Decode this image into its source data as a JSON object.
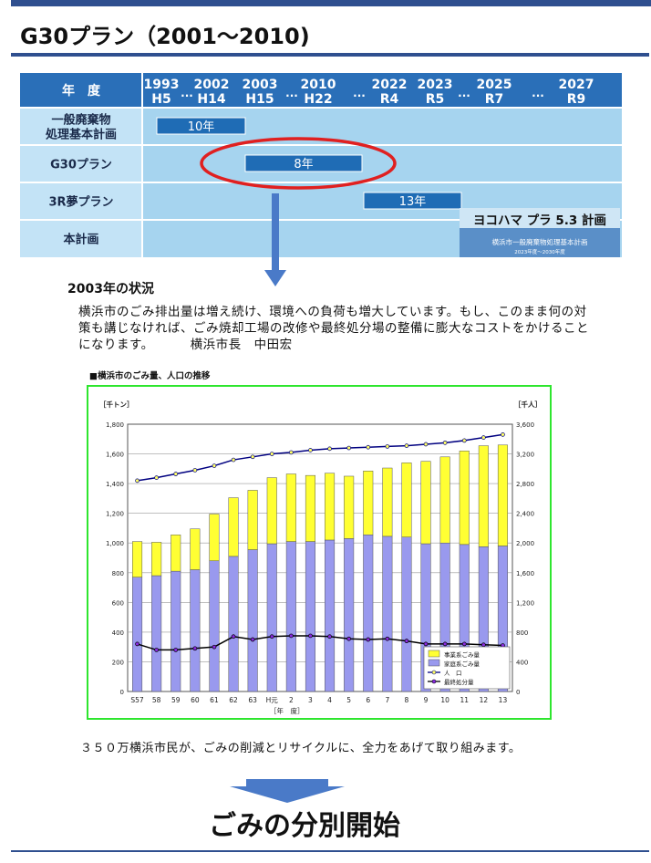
{
  "slide": {
    "title": "G30プラン（2001〜2010)",
    "subheading": "2003年の状況",
    "quote": "横浜市のごみ排出量は増え続け、環境への負荷も増大しています。もし、このまま何の対策も講じなければ、ごみ焼却工場の改修や最終処分場の整備に膨大なコストをかけることになります。",
    "quote_author": "横浜市長　中田宏",
    "chart_caption": "■横浜市のごみ量、人口の推移",
    "pledge": "３５０万横浜市民が、ごみの削減とリサイクルに、全力をあげて取り組みます。",
    "conclusion": "ごみの分別開始"
  },
  "timeline": {
    "header_label": "年　度",
    "columns": [
      {
        "year": "1993",
        "era": "H5"
      },
      {
        "year": "...",
        "era": ""
      },
      {
        "year": "2002",
        "era": "H14"
      },
      {
        "year": "2003",
        "era": "H15"
      },
      {
        "year": "...",
        "era": ""
      },
      {
        "year": "2010",
        "era": "H22"
      },
      {
        "year": "...",
        "era": ""
      },
      {
        "year": "2022",
        "era": "R4"
      },
      {
        "year": "2023",
        "era": "R5"
      },
      {
        "year": "...",
        "era": ""
      },
      {
        "year": "2025",
        "era": "R7"
      },
      {
        "year": "...",
        "era": ""
      },
      {
        "year": "2027",
        "era": "R9"
      }
    ],
    "rows": [
      {
        "label": "一般廃棄物\n処理基本計画",
        "bar_label": "10年",
        "start": "1993",
        "end": "2002"
      },
      {
        "label": "G30プラン",
        "bar_label": "8年",
        "start": "2003",
        "end": "2010",
        "highlighted": true
      },
      {
        "label": "3R夢プラン",
        "bar_label": "13年",
        "start": "2010",
        "end": "2022"
      },
      {
        "label": "本計画",
        "bar_label": "",
        "start": "2023",
        "end": "2030"
      }
    ],
    "plan_card": {
      "title": "ヨコハマ プラ 5.3 計画",
      "subtitle": "横浜市一般廃棄物処理基本計画",
      "period": "2023年度〜2030年度"
    },
    "colors": {
      "header": "#2a6fb8",
      "body": "#a6d4ef",
      "bar": "#1f6cb5",
      "circle": "#e02020"
    }
  },
  "chart_data": {
    "type": "bar",
    "x": [
      "S57",
      "58",
      "59",
      "60",
      "61",
      "62",
      "63",
      "H元",
      "2",
      "3",
      "4",
      "5",
      "6",
      "7",
      "8",
      "9",
      "10",
      "11",
      "12",
      "13"
    ],
    "xlabel": "［年　度］",
    "ylabel_left": "［千トン］",
    "ylabel_right": "［千人］",
    "ylim_left": [
      0,
      1800
    ],
    "ylim_right": [
      0,
      3600
    ],
    "yticks_left": [
      "0",
      "200",
      "400",
      "600",
      "800",
      "1,000",
      "1,200",
      "1,400",
      "1,600",
      "1,800"
    ],
    "yticks_right": [
      "0",
      "400",
      "800",
      "1,200",
      "1,600",
      "2,000",
      "2,400",
      "2,800",
      "3,200",
      "3,600"
    ],
    "grid": true,
    "legend_position": "bottom-right",
    "series": [
      {
        "name": "家庭系ごみ量",
        "kind": "stacked-bar",
        "axis": "left",
        "color": "#9999ee",
        "values": [
          770,
          780,
          810,
          820,
          880,
          910,
          955,
          995,
          1010,
          1010,
          1020,
          1030,
          1055,
          1045,
          1040,
          995,
          1000,
          990,
          975,
          980
        ]
      },
      {
        "name": "事業系ごみ量",
        "kind": "stacked-bar",
        "axis": "left",
        "color": "#ffff33",
        "values": [
          240,
          225,
          245,
          275,
          315,
          395,
          400,
          445,
          455,
          445,
          450,
          420,
          430,
          460,
          500,
          555,
          580,
          630,
          680,
          680
        ]
      },
      {
        "name": "人　口",
        "kind": "line",
        "axis": "right",
        "color": "#000080",
        "marker_color": "#ffff66",
        "values": [
          2840,
          2880,
          2930,
          2980,
          3040,
          3120,
          3160,
          3200,
          3220,
          3250,
          3270,
          3280,
          3290,
          3300,
          3310,
          3330,
          3350,
          3380,
          3420,
          3460
        ]
      },
      {
        "name": "最終処分量",
        "kind": "line",
        "axis": "left",
        "color": "#000000",
        "marker_color": "#8a2be2",
        "values": [
          320,
          280,
          280,
          290,
          300,
          370,
          350,
          370,
          375,
          375,
          370,
          355,
          350,
          355,
          340,
          320,
          320,
          320,
          315,
          310
        ]
      }
    ]
  }
}
